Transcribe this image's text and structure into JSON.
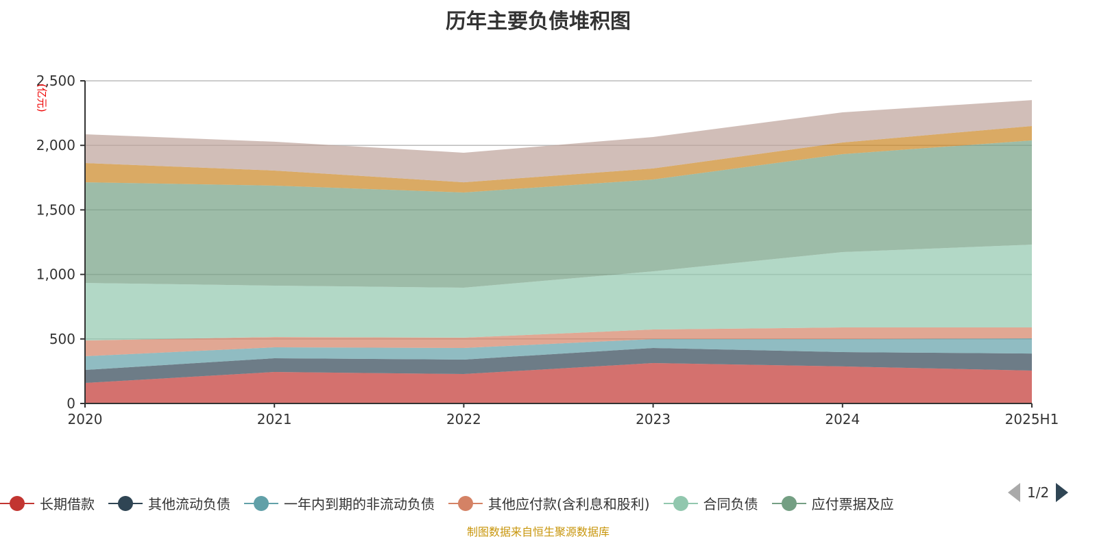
{
  "chart_data": {
    "type": "area",
    "stacked": true,
    "title": "历年主要负债堆积图",
    "ylabel": "(亿元)",
    "ylim": [
      0,
      2500
    ],
    "yticks": [
      "0",
      "500",
      "1,000",
      "1,500",
      "2,000",
      "2,500"
    ],
    "categories": [
      "2020",
      "2021",
      "2022",
      "2023",
      "2024",
      "2025H1"
    ],
    "grid": true,
    "legend_position": "bottom",
    "series": [
      {
        "name": "长期借款",
        "color": "#c23531",
        "values": [
          159,
          244,
          228,
          313,
          287,
          255
        ]
      },
      {
        "name": "其他流动负债",
        "color": "#2f4554",
        "values": [
          101,
          106,
          112,
          117,
          111,
          132
        ]
      },
      {
        "name": "一年内到期的非流动负债",
        "color": "#61a0a8",
        "values": [
          106,
          85,
          90,
          69,
          101,
          117
        ]
      },
      {
        "name": "其他应付款(含利息和股利)",
        "color": "#d48265",
        "values": [
          122,
          80,
          80,
          74,
          90,
          85
        ]
      },
      {
        "name": "合同负债",
        "color": "#91c7ae",
        "values": [
          446,
          398,
          387,
          451,
          584,
          642
        ]
      },
      {
        "name": "应付票据及应",
        "color": "#749f83",
        "values": [
          780,
          775,
          738,
          712,
          759,
          807
        ]
      },
      {
        "color": "#ca8622",
        "values": [
          149,
          117,
          79,
          85,
          90,
          112
        ]
      },
      {
        "color": "#bda29a",
        "values": [
          223,
          223,
          229,
          244,
          234,
          201
        ]
      }
    ]
  },
  "legend": {
    "page": "1/2"
  },
  "source": "制图数据来自恒生聚源数据库"
}
